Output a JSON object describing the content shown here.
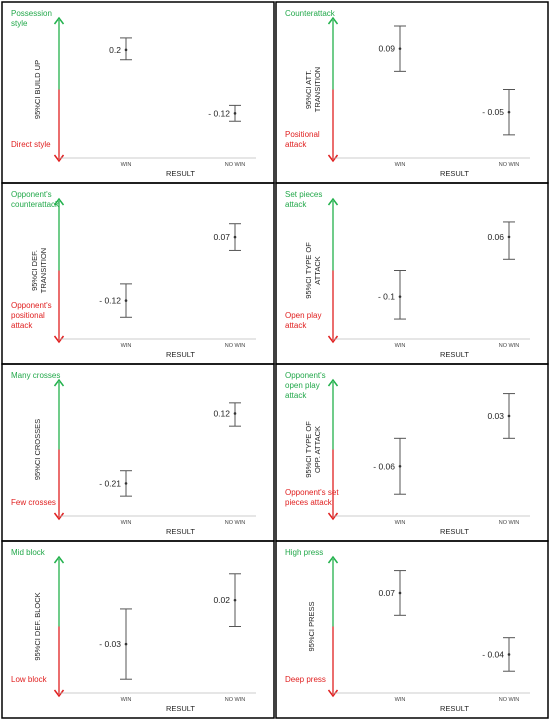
{
  "colors": {
    "top_arrow": "#22b14c",
    "bottom_arrow": "#e02020",
    "top_label": "#22a84a",
    "bottom_label": "#e02020",
    "error_bar": "#555555",
    "panel_border": "#000000"
  },
  "chart_data": [
    {
      "type": "errorbar",
      "ylabel": "95%CI BUILD UP",
      "top_label": "Possession style",
      "bottom_label": "Direct style",
      "xlabel": "RESULT",
      "categories": [
        "WIN",
        "NO WIN"
      ],
      "values": [
        0.2,
        -0.12
      ],
      "value_labels": [
        "0.2",
        "- 0.12"
      ],
      "ylim": [
        -0.32,
        0.32
      ],
      "ci": [
        [
          0.15,
          0.26
        ],
        [
          -0.16,
          -0.08
        ]
      ]
    },
    {
      "type": "errorbar",
      "ylabel": "95%CI ATT. TRANSITION",
      "top_label": "Counterattack",
      "bottom_label": "Positional attack",
      "xlabel": "RESULT",
      "categories": [
        "WIN",
        "NO WIN"
      ],
      "values": [
        0.09,
        -0.05
      ],
      "value_labels": [
        "0.09",
        "- 0.05"
      ],
      "ylim": [
        -0.14,
        0.14
      ],
      "ci": [
        [
          0.04,
          0.14
        ],
        [
          -0.1,
          0.0
        ]
      ]
    },
    {
      "type": "errorbar",
      "ylabel": "95%CI DEF. TRANSITION",
      "top_label": "Opponent's counterattack",
      "bottom_label": "Opponent's positional attack",
      "xlabel": "RESULT",
      "categories": [
        "WIN",
        "NO WIN"
      ],
      "values": [
        -0.12,
        0.07
      ],
      "value_labels": [
        "- 0.12",
        "0.07"
      ],
      "ylim": [
        -0.22,
        0.16
      ],
      "ci": [
        [
          -0.17,
          -0.07
        ],
        [
          0.03,
          0.11
        ]
      ]
    },
    {
      "type": "errorbar",
      "ylabel": "95%CI TYPE OF ATTACK",
      "top_label": "Set pieces attack",
      "bottom_label": "Open play attack",
      "xlabel": "RESULT",
      "categories": [
        "WIN",
        "NO WIN"
      ],
      "values": [
        -0.1,
        0.06
      ],
      "value_labels": [
        "- 0.1",
        "0.06"
      ],
      "ylim": [
        -0.2,
        0.14
      ],
      "ci": [
        [
          -0.16,
          -0.03
        ],
        [
          0.0,
          0.1
        ]
      ]
    },
    {
      "type": "errorbar",
      "ylabel": "95%CI CROSSES",
      "top_label": "Many crosses",
      "bottom_label": "Few crosses",
      "xlabel": "RESULT",
      "categories": [
        "WIN",
        "NO WIN"
      ],
      "values": [
        -0.21,
        0.12
      ],
      "value_labels": [
        "- 0.21",
        "0.12"
      ],
      "ylim": [
        -0.34,
        0.24
      ],
      "ci": [
        [
          -0.27,
          -0.15
        ],
        [
          0.06,
          0.17
        ]
      ]
    },
    {
      "type": "errorbar",
      "ylabel": "95%CI TYPE OF OPP. ATTACK",
      "top_label": "Opponent's open play attack",
      "bottom_label": "Opponent's set pieces attack",
      "xlabel": "RESULT",
      "categories": [
        "WIN",
        "NO WIN"
      ],
      "values": [
        -0.06,
        0.03
      ],
      "value_labels": [
        "- 0.06",
        "0.03"
      ],
      "ylim": [
        -0.14,
        0.08
      ],
      "ci": [
        [
          -0.11,
          -0.01
        ],
        [
          -0.01,
          0.07
        ]
      ]
    },
    {
      "type": "errorbar",
      "ylabel": "95%CI DEF. BLOCK",
      "top_label": "Mid block",
      "bottom_label": "Low block",
      "xlabel": "RESULT",
      "categories": [
        "WIN",
        "NO WIN"
      ],
      "values": [
        -0.03,
        0.02
      ],
      "value_labels": [
        "- 0.03",
        "0.02"
      ],
      "ylim": [
        -0.08,
        0.06
      ],
      "ci": [
        [
          -0.07,
          0.01
        ],
        [
          -0.01,
          0.05
        ]
      ]
    },
    {
      "type": "errorbar",
      "ylabel": "95%CI PRESS",
      "top_label": "High press",
      "bottom_label": "Deep press",
      "xlabel": "RESULT",
      "categories": [
        "WIN",
        "NO WIN"
      ],
      "values": [
        0.07,
        -0.04
      ],
      "value_labels": [
        "0.07",
        "- 0.04"
      ],
      "ylim": [
        -0.1,
        0.12
      ],
      "ci": [
        [
          0.03,
          0.11
        ],
        [
          -0.07,
          -0.01
        ]
      ]
    }
  ]
}
